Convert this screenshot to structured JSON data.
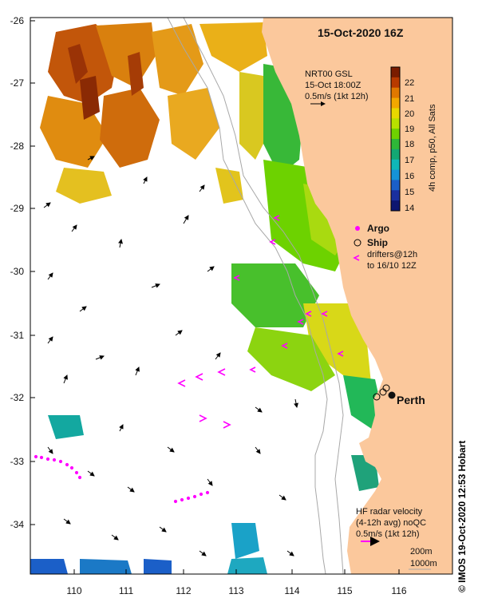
{
  "title": "15-Oct-2020 16Z",
  "credit": "© IMOS 19-Oct-2020 12:53 Hobart",
  "wind_box": {
    "line1": "NRT00 GSL",
    "line2": "15-Oct 18:00Z",
    "line3": "0.5m/s (1kt 12h)"
  },
  "colorbar": {
    "label": "4h comp, p50, All Sats",
    "ticks": [
      "22",
      "21",
      "20",
      "19",
      "18",
      "17",
      "16",
      "15",
      "14"
    ],
    "colors": [
      "#7a1c00",
      "#b83a00",
      "#e07800",
      "#f2a800",
      "#e8d800",
      "#b8e000",
      "#6fd100",
      "#2eb838",
      "#13a873",
      "#0fb7b8",
      "#1593d8",
      "#1b5fc8",
      "#1a2f9e",
      "#0d1670"
    ]
  },
  "legend": {
    "argo": "Argo",
    "ship": "Ship",
    "drifters_line1": "drifters@12h",
    "drifters_line2": "to 16/10 12Z",
    "argo_color": "#ff00ff",
    "drifter_color": "#ff00ff"
  },
  "radar_box": {
    "line1": "HF radar velocity",
    "line2": "(4-12h avg) noQC",
    "line3": "0.5m/s (1kt 12h)"
  },
  "depth_legend": {
    "line1": "200m",
    "line2": "1000m"
  },
  "city": "Perth",
  "axes": {
    "lat_labels": [
      "-26",
      "-27",
      "-28",
      "-29",
      "-30",
      "-31",
      "-32",
      "-33",
      "-34"
    ],
    "lon_labels": [
      "110",
      "111",
      "112",
      "113",
      "114",
      "115",
      "116"
    ]
  },
  "colors": {
    "land": "#fbc89c",
    "isobath": "#a8a8a8",
    "arrow": "#000000"
  }
}
